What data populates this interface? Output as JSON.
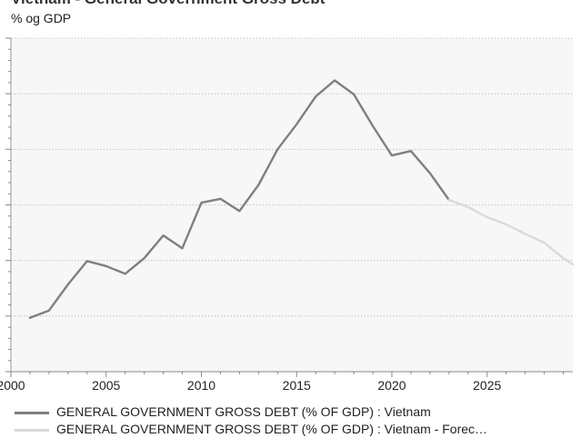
{
  "title": "Vietnam - General Government Gross Debt",
  "unit_label": "% og GDP",
  "chart_data": {
    "type": "line",
    "x_ticks": [
      2000,
      2005,
      2010,
      2015,
      2020,
      2025
    ],
    "x_range": [
      2000,
      2029.5
    ],
    "y_range": [
      20,
      80
    ],
    "grid": true,
    "series": [
      {
        "name": "GENERAL GOVERNMENT GROSS DEBT (% OF GDP) : Vietnam",
        "color": "#7f7f7f",
        "x": [
          2001,
          2002,
          2003,
          2004,
          2005,
          2006,
          2007,
          2008,
          2009,
          2010,
          2011,
          2012,
          2013,
          2014,
          2015,
          2016,
          2017,
          2018,
          2019,
          2020,
          2021,
          2022,
          2023
        ],
        "y": [
          29.7,
          31.0,
          35.7,
          39.9,
          39.0,
          37.6,
          40.4,
          44.5,
          42.2,
          50.4,
          51.1,
          48.9,
          53.6,
          60.0,
          64.5,
          69.5,
          72.4,
          69.9,
          64.2,
          58.9,
          59.7,
          55.7,
          50.9
        ]
      },
      {
        "name": "GENERAL GOVERNMENT GROSS DEBT (% OF GDP) : Vietnam - Forec…",
        "color": "#d9d9d9",
        "x": [
          2023,
          2024,
          2025,
          2026,
          2027,
          2028,
          2029,
          2029.5
        ],
        "y": [
          50.9,
          49.6,
          47.8,
          46.5,
          44.8,
          43.2,
          40.4,
          39.3
        ]
      }
    ]
  }
}
